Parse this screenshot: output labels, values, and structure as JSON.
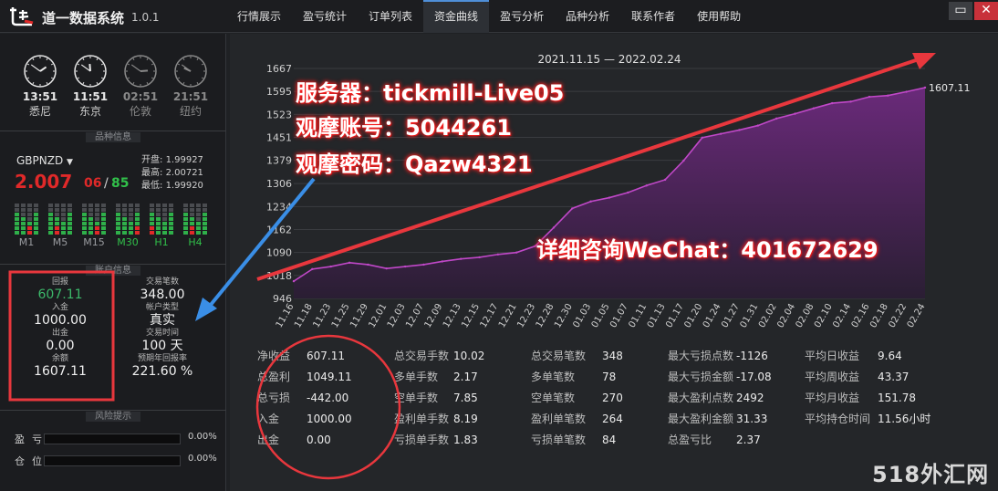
{
  "app": {
    "title": "道一数据系统",
    "version": "1.0.1",
    "tabs": [
      "行情展示",
      "盈亏统计",
      "订单列表",
      "资金曲线",
      "盈亏分析",
      "品种分析",
      "联系作者",
      "使用帮助"
    ],
    "active_tab": "资金曲线",
    "window_buttons": {
      "minimize": "▭",
      "close": "✕"
    }
  },
  "clocks": [
    {
      "time": "13:51",
      "city": "悉尼",
      "dim": false
    },
    {
      "time": "11:51",
      "city": "东京",
      "dim": false
    },
    {
      "time": "02:51",
      "city": "伦敦",
      "dim": true
    },
    {
      "time": "21:51",
      "city": "纽约",
      "dim": true
    }
  ],
  "product": {
    "header": "品种信息",
    "symbol": "GBPNZD",
    "price_main": "2.007",
    "price_mid": "06",
    "price_sep": "/",
    "price_end": "85",
    "open_label": "开盘:",
    "open": "1.99927",
    "high_label": "最高:",
    "high": "2.00721",
    "low_label": "最低:",
    "low": "1.99920",
    "timeframes": [
      "M1",
      "M5",
      "M15",
      "M30",
      "H1",
      "H4"
    ]
  },
  "account": {
    "header": "账户信息",
    "profit_label": "回报",
    "profit": "607.11",
    "deposit_label": "入金",
    "deposit": "1000.00",
    "withdraw_label": "出金",
    "withdraw": "0.00",
    "balance_label": "余额",
    "balance": "1607.11",
    "trades_label": "交易笔数",
    "trades": "348.00",
    "type_label": "帐户类型",
    "type": "真实",
    "time_label": "交易时间",
    "time": "100 天",
    "annual_label": "预期年回报率",
    "annual": "221.60 %"
  },
  "risk": {
    "header": "风险提示",
    "rows": [
      {
        "label": "盈亏",
        "value": "0.00%",
        "fraction": 0
      },
      {
        "label": "仓位",
        "value": "0.00%",
        "fraction": 0
      }
    ]
  },
  "chart_data": {
    "type": "area",
    "title": "2021.11.15 — 2022.02.24",
    "y_ticks": [
      946,
      1018,
      1090,
      1162,
      1234,
      1306,
      1379,
      1451,
      1523,
      1595,
      1667
    ],
    "ylim": [
      946,
      1667
    ],
    "x_ticks": [
      "11.16",
      "11.18",
      "11.23",
      "11.25",
      "11.29",
      "12.01",
      "12.03",
      "12.07",
      "12.09",
      "12.13",
      "12.15",
      "12.17",
      "12.21",
      "12.23",
      "12.28",
      "12.30",
      "01.03",
      "01.05",
      "01.07",
      "01.11",
      "01.13",
      "01.17",
      "01.20",
      "01.24",
      "01.27",
      "01.31",
      "02.02",
      "02.04",
      "02.08",
      "02.10",
      "02.14",
      "02.16",
      "02.18",
      "02.22",
      "02.24"
    ],
    "last_value_label": "1607.11",
    "x": [
      0,
      1,
      2,
      3,
      4,
      5,
      6,
      7,
      8,
      9,
      10,
      11,
      12,
      13,
      14,
      15,
      16,
      17,
      18,
      19,
      20,
      21,
      22,
      23,
      24,
      25,
      26,
      27,
      28,
      29,
      30,
      31,
      32,
      33,
      34
    ],
    "values": [
      1000,
      1038,
      1046,
      1058,
      1052,
      1040,
      1046,
      1052,
      1062,
      1070,
      1075,
      1084,
      1090,
      1110,
      1168,
      1228,
      1250,
      1262,
      1278,
      1300,
      1318,
      1378,
      1450,
      1462,
      1474,
      1488,
      1510,
      1525,
      1542,
      1558,
      1563,
      1578,
      1582,
      1594,
      1607
    ],
    "colors": {
      "line": "#c048c8",
      "fill_top": "#6a2a7a",
      "fill_bottom": "#2a1e33",
      "grid": "#3a3c40"
    }
  },
  "stats": [
    {
      "label": "净收益",
      "value": "607.11"
    },
    {
      "label": "总盈利",
      "value": "1049.11"
    },
    {
      "label": "总亏损",
      "value": "-442.00"
    },
    {
      "label": "入金",
      "value": "1000.00"
    },
    {
      "label": "出金",
      "value": "0.00"
    },
    {
      "label": "总交易手数",
      "value": "10.02"
    },
    {
      "label": "多单手数",
      "value": "2.17"
    },
    {
      "label": "空单手数",
      "value": "7.85"
    },
    {
      "label": "盈利单手数",
      "value": "8.19"
    },
    {
      "label": "亏损单手数",
      "value": "1.83"
    },
    {
      "label": "总交易笔数",
      "value": "348"
    },
    {
      "label": "多单笔数",
      "value": "78"
    },
    {
      "label": "空单笔数",
      "value": "270"
    },
    {
      "label": "盈利单笔数",
      "value": "264"
    },
    {
      "label": "亏损单笔数",
      "value": "84"
    },
    {
      "label": "最大亏损点数",
      "value": "-1126"
    },
    {
      "label": "最大亏损金额",
      "value": "-17.08"
    },
    {
      "label": "最大盈利点数",
      "value": "2492"
    },
    {
      "label": "最大盈利金额",
      "value": "31.33"
    },
    {
      "label": "总盈亏比",
      "value": "2.37"
    },
    {
      "label": "平均日收益",
      "value": "9.64"
    },
    {
      "label": "平均周收益",
      "value": "43.37"
    },
    {
      "label": "平均月收益",
      "value": "151.78"
    },
    {
      "label": "平均持仓时间",
      "value": "11.56小时"
    }
  ],
  "annotations": {
    "server": "服务器：tickmill-Live05",
    "account": "观摩账号：5044261",
    "password": "观摩密码：Qazw4321",
    "wechat": "详细咨询WeChat：401672629",
    "watermark": "518外汇网"
  },
  "colors": {
    "annotation_red": "#e8373d",
    "arrow_blue": "#3a8ee6",
    "profit_green": "#3cb86a"
  }
}
